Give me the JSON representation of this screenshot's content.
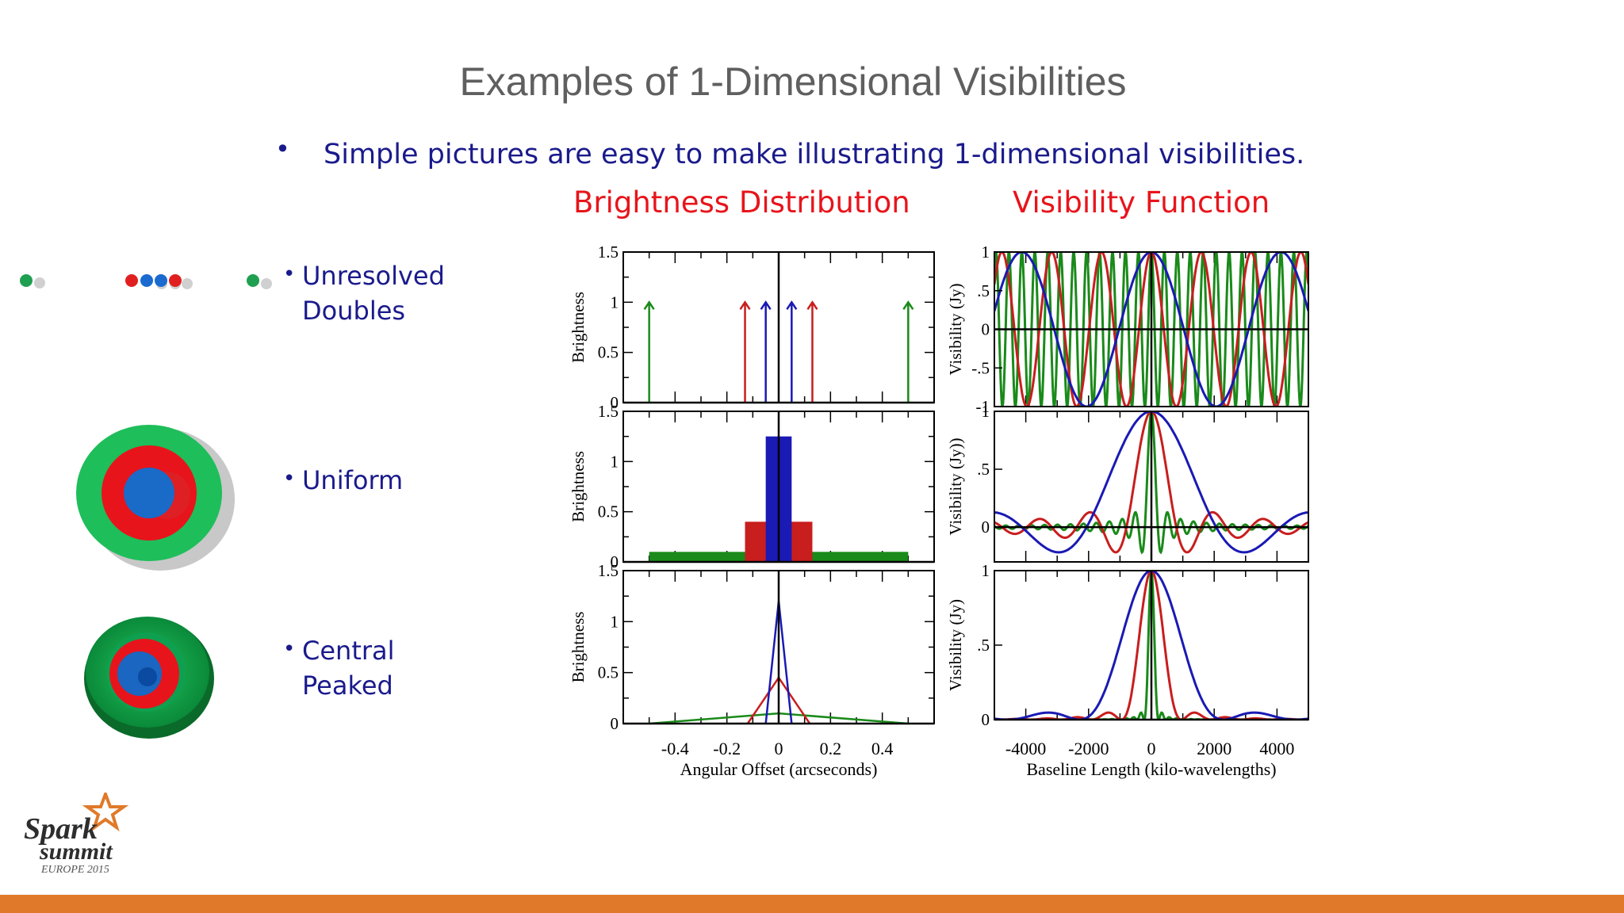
{
  "slide": {
    "title": "Examples of 1-Dimensional Visibilities",
    "bullet": "Simple pictures are easy to make illustrating 1-dimensional visibilities.",
    "col_titles": {
      "left": "Brightness Distribution",
      "right": "Visibility Function"
    },
    "rows": [
      {
        "label_line1": "Unresolved",
        "label_line2": "Doubles"
      },
      {
        "label_line1": "Uniform",
        "label_line2": ""
      },
      {
        "label_line1": "Central",
        "label_line2": "Peaked"
      }
    ],
    "logo": {
      "line1": "Spark",
      "line2": "summit",
      "line3": "EUROPE 2015"
    }
  },
  "colors": {
    "green": "#1a8a1a",
    "red": "#c81e1e",
    "blue": "#1a1ab4",
    "title_red": "#e8141b",
    "bullet_blue": "#1a1a8c",
    "footer": "#e07a2a"
  },
  "chart_data": [
    {
      "type": "line",
      "title": "Brightness Distribution",
      "ylabel": "Brightness",
      "xlabel": "Angular Offset (arcseconds)",
      "xlim": [
        -0.6,
        0.6
      ],
      "ylim": [
        0,
        1.5
      ],
      "yticks": [
        "0",
        "0.5",
        "1",
        "1.5"
      ],
      "xticks": [
        "-0.4",
        "-0.2",
        "0",
        "0.2",
        "0.4"
      ],
      "panels": [
        {
          "name": "unresolved-doubles",
          "style": "arrows",
          "series": [
            {
              "color": "green",
              "points": [
                [
                  -0.5,
                  1
                ],
                [
                  0.5,
                  1
                ]
              ]
            },
            {
              "color": "red",
              "points": [
                [
                  -0.13,
                  1
                ],
                [
                  0.13,
                  1
                ]
              ]
            },
            {
              "color": "blue",
              "points": [
                [
                  -0.05,
                  1
                ],
                [
                  0.05,
                  1
                ]
              ]
            }
          ]
        },
        {
          "name": "uniform",
          "style": "boxes",
          "series": [
            {
              "color": "green",
              "x": [
                -0.5,
                0.5
              ],
              "value": 0.1
            },
            {
              "color": "red",
              "x": [
                -0.13,
                0.13
              ],
              "value": 0.4
            },
            {
              "color": "blue",
              "x": [
                -0.05,
                0.05
              ],
              "value": 1.25
            }
          ]
        },
        {
          "name": "central-peaked",
          "style": "triangles",
          "series": [
            {
              "color": "green",
              "x": [
                -0.5,
                0.5
              ],
              "value": 0.1
            },
            {
              "color": "red",
              "x": [
                -0.12,
                0.12
              ],
              "value": 0.45
            },
            {
              "color": "blue",
              "x": [
                -0.05,
                0.05
              ],
              "value": 1.2
            }
          ]
        }
      ]
    },
    {
      "type": "line",
      "title": "Visibility Function",
      "xlabel": "Baseline Length (kilo-wavelengths)",
      "xlim": [
        -5000,
        5000
      ],
      "xticks": [
        "-4000",
        "-2000",
        "0",
        "2000",
        "4000"
      ],
      "panels": [
        {
          "name": "unresolved-doubles",
          "ylabel": "Visibility (Jy)",
          "ylim": [
            -1,
            1
          ],
          "yticks": [
            "-1",
            "-.5",
            "0",
            ".5",
            "1"
          ],
          "series": [
            {
              "color": "green",
              "function": "cos",
              "half_separation": 0.5
            },
            {
              "color": "red",
              "function": "cos",
              "half_separation": 0.13
            },
            {
              "color": "blue",
              "function": "cos",
              "half_separation": 0.05
            }
          ]
        },
        {
          "name": "uniform",
          "ylabel": "Visibility (Jy))",
          "ylim": [
            -0.3,
            1
          ],
          "yticks": [
            "0",
            ".5",
            "1"
          ],
          "series": [
            {
              "color": "green",
              "function": "sinc",
              "half_width": 0.5
            },
            {
              "color": "red",
              "function": "sinc",
              "half_width": 0.13
            },
            {
              "color": "blue",
              "function": "sinc",
              "half_width": 0.05
            }
          ]
        },
        {
          "name": "central-peaked",
          "ylabel": "Visibility (Jy)",
          "ylim": [
            0,
            1
          ],
          "yticks": [
            "0",
            ".5",
            "1"
          ],
          "series": [
            {
              "color": "green",
              "function": "sinc2",
              "half_width": 0.5
            },
            {
              "color": "red",
              "function": "sinc2",
              "half_width": 0.12
            },
            {
              "color": "blue",
              "function": "sinc2",
              "half_width": 0.05
            }
          ]
        }
      ]
    }
  ]
}
